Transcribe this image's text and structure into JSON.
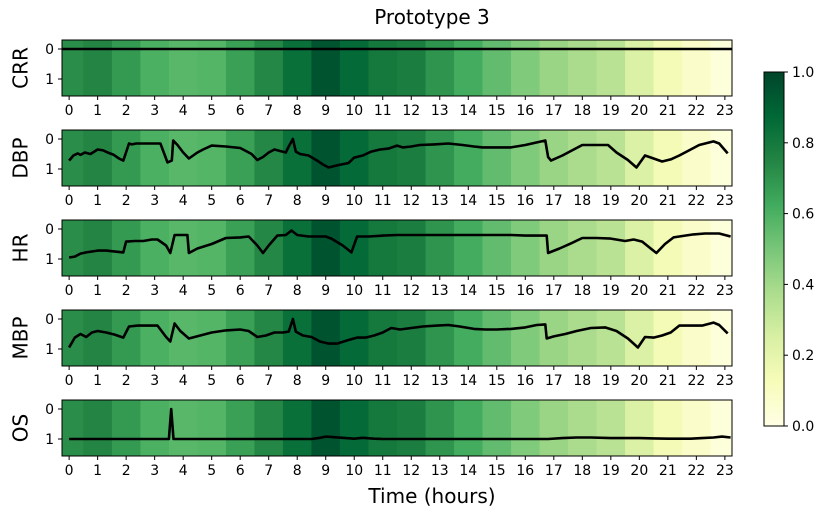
{
  "chart_data": {
    "type": "heatmap",
    "title": "Prototype 3",
    "xlabel": "Time (hours)",
    "x_ticks": [
      "0",
      "1",
      "2",
      "3",
      "4",
      "5",
      "6",
      "7",
      "8",
      "9",
      "10",
      "11",
      "12",
      "13",
      "14",
      "15",
      "16",
      "17",
      "18",
      "19",
      "20",
      "21",
      "22",
      "23"
    ],
    "y_ticks": [
      "0",
      "1"
    ],
    "xlim": [
      -0.25,
      23.25
    ],
    "heat_values": [
      0.72,
      0.75,
      0.68,
      0.6,
      0.57,
      0.58,
      0.66,
      0.74,
      0.84,
      0.95,
      0.86,
      0.8,
      0.78,
      0.7,
      0.62,
      0.55,
      0.48,
      0.42,
      0.38,
      0.34,
      0.24,
      0.14,
      0.08,
      0.03
    ],
    "colormap": {
      "name": "YlGn",
      "stops": [
        [
          0.0,
          "#ffffe5"
        ],
        [
          0.125,
          "#f7fcb9"
        ],
        [
          0.25,
          "#d9f0a3"
        ],
        [
          0.375,
          "#addd8e"
        ],
        [
          0.5,
          "#78c679"
        ],
        [
          0.625,
          "#41ab5d"
        ],
        [
          0.75,
          "#238443"
        ],
        [
          0.875,
          "#006837"
        ],
        [
          1.0,
          "#004529"
        ]
      ]
    },
    "colorbar": {
      "ticks": [
        "0.0",
        "0.2",
        "0.4",
        "0.6",
        "0.8",
        "1.0"
      ],
      "range": [
        0,
        1
      ]
    },
    "line_color": "#000000",
    "panels": [
      {
        "label": "CRR",
        "line": [
          [
            -0.25,
            0
          ],
          [
            23.25,
            0
          ]
        ]
      },
      {
        "label": "DBP",
        "line": [
          [
            0,
            0.72
          ],
          [
            0.15,
            0.55
          ],
          [
            0.3,
            0.48
          ],
          [
            0.4,
            0.53
          ],
          [
            0.55,
            0.45
          ],
          [
            0.75,
            0.5
          ],
          [
            1.0,
            0.35
          ],
          [
            1.2,
            0.38
          ],
          [
            1.35,
            0.45
          ],
          [
            1.55,
            0.52
          ],
          [
            1.75,
            0.65
          ],
          [
            1.9,
            0.72
          ],
          [
            2.1,
            0.15
          ],
          [
            2.2,
            0.18
          ],
          [
            2.35,
            0.15
          ],
          [
            2.5,
            0.15
          ],
          [
            2.8,
            0.15
          ],
          [
            3.0,
            0.15
          ],
          [
            3.2,
            0.15
          ],
          [
            3.45,
            0.78
          ],
          [
            3.6,
            0.72
          ],
          [
            3.65,
            0.05
          ],
          [
            3.8,
            0.2
          ],
          [
            4.0,
            0.45
          ],
          [
            4.2,
            0.65
          ],
          [
            4.5,
            0.45
          ],
          [
            4.7,
            0.35
          ],
          [
            5.0,
            0.22
          ],
          [
            5.5,
            0.25
          ],
          [
            6.0,
            0.3
          ],
          [
            6.4,
            0.5
          ],
          [
            6.6,
            0.7
          ],
          [
            6.8,
            0.6
          ],
          [
            7.0,
            0.45
          ],
          [
            7.2,
            0.35
          ],
          [
            7.4,
            0.4
          ],
          [
            7.6,
            0.45
          ],
          [
            7.7,
            0.25
          ],
          [
            7.85,
            0.0
          ],
          [
            7.95,
            0.42
          ],
          [
            8.1,
            0.5
          ],
          [
            8.4,
            0.55
          ],
          [
            8.7,
            0.72
          ],
          [
            8.9,
            0.85
          ],
          [
            9.1,
            0.95
          ],
          [
            9.4,
            0.88
          ],
          [
            9.8,
            0.8
          ],
          [
            10.0,
            0.62
          ],
          [
            10.3,
            0.55
          ],
          [
            10.6,
            0.42
          ],
          [
            10.9,
            0.35
          ],
          [
            11.2,
            0.32
          ],
          [
            11.5,
            0.22
          ],
          [
            11.7,
            0.28
          ],
          [
            12.0,
            0.25
          ],
          [
            12.3,
            0.2
          ],
          [
            12.8,
            0.18
          ],
          [
            13.3,
            0.15
          ],
          [
            13.8,
            0.2
          ],
          [
            14.2,
            0.25
          ],
          [
            14.5,
            0.28
          ],
          [
            15.0,
            0.28
          ],
          [
            15.5,
            0.28
          ],
          [
            16.0,
            0.2
          ],
          [
            16.7,
            0.05
          ],
          [
            16.8,
            0.6
          ],
          [
            16.9,
            0.72
          ],
          [
            17.3,
            0.55
          ],
          [
            17.6,
            0.4
          ],
          [
            18.0,
            0.2
          ],
          [
            18.3,
            0.2
          ],
          [
            18.6,
            0.2
          ],
          [
            18.9,
            0.2
          ],
          [
            19.2,
            0.45
          ],
          [
            19.6,
            0.7
          ],
          [
            19.9,
            0.95
          ],
          [
            20.2,
            0.55
          ],
          [
            20.5,
            0.65
          ],
          [
            20.8,
            0.75
          ],
          [
            21.1,
            0.68
          ],
          [
            21.4,
            0.55
          ],
          [
            21.8,
            0.35
          ],
          [
            22.1,
            0.2
          ],
          [
            22.6,
            0.08
          ],
          [
            22.8,
            0.15
          ],
          [
            23.1,
            0.48
          ]
        ]
      },
      {
        "label": "HR",
        "line": [
          [
            0,
            0.95
          ],
          [
            0.2,
            0.92
          ],
          [
            0.4,
            0.82
          ],
          [
            0.6,
            0.78
          ],
          [
            1.0,
            0.72
          ],
          [
            1.3,
            0.72
          ],
          [
            1.7,
            0.76
          ],
          [
            1.9,
            0.78
          ],
          [
            2.0,
            0.42
          ],
          [
            2.3,
            0.4
          ],
          [
            2.6,
            0.4
          ],
          [
            2.9,
            0.35
          ],
          [
            3.1,
            0.35
          ],
          [
            3.4,
            0.55
          ],
          [
            3.55,
            0.8
          ],
          [
            3.7,
            0.2
          ],
          [
            3.9,
            0.2
          ],
          [
            4.15,
            0.2
          ],
          [
            4.2,
            0.8
          ],
          [
            4.5,
            0.65
          ],
          [
            5.0,
            0.5
          ],
          [
            5.5,
            0.3
          ],
          [
            6.0,
            0.28
          ],
          [
            6.3,
            0.25
          ],
          [
            6.6,
            0.55
          ],
          [
            6.8,
            0.8
          ],
          [
            7.0,
            0.55
          ],
          [
            7.3,
            0.22
          ],
          [
            7.6,
            0.2
          ],
          [
            7.8,
            0.05
          ],
          [
            8.0,
            0.2
          ],
          [
            8.4,
            0.25
          ],
          [
            9.0,
            0.25
          ],
          [
            9.2,
            0.32
          ],
          [
            9.6,
            0.55
          ],
          [
            9.9,
            0.78
          ],
          [
            10.1,
            0.25
          ],
          [
            10.5,
            0.25
          ],
          [
            11.0,
            0.22
          ],
          [
            11.5,
            0.2
          ],
          [
            12.0,
            0.2
          ],
          [
            13.0,
            0.2
          ],
          [
            14.0,
            0.2
          ],
          [
            15.0,
            0.2
          ],
          [
            15.5,
            0.2
          ],
          [
            16.0,
            0.22
          ],
          [
            16.75,
            0.22
          ],
          [
            16.8,
            0.8
          ],
          [
            17.2,
            0.65
          ],
          [
            17.6,
            0.48
          ],
          [
            18.0,
            0.3
          ],
          [
            18.5,
            0.3
          ],
          [
            19.0,
            0.32
          ],
          [
            19.5,
            0.4
          ],
          [
            19.8,
            0.35
          ],
          [
            20.1,
            0.42
          ],
          [
            20.4,
            0.65
          ],
          [
            20.6,
            0.8
          ],
          [
            20.9,
            0.5
          ],
          [
            21.2,
            0.28
          ],
          [
            21.6,
            0.22
          ],
          [
            21.9,
            0.18
          ],
          [
            22.3,
            0.15
          ],
          [
            22.8,
            0.15
          ],
          [
            23.2,
            0.25
          ]
        ]
      },
      {
        "label": "MBP",
        "line": [
          [
            0,
            0.95
          ],
          [
            0.2,
            0.62
          ],
          [
            0.4,
            0.5
          ],
          [
            0.6,
            0.6
          ],
          [
            0.8,
            0.45
          ],
          [
            1.0,
            0.4
          ],
          [
            1.3,
            0.45
          ],
          [
            1.6,
            0.52
          ],
          [
            1.9,
            0.62
          ],
          [
            2.1,
            0.25
          ],
          [
            2.4,
            0.22
          ],
          [
            2.8,
            0.22
          ],
          [
            3.1,
            0.22
          ],
          [
            3.4,
            0.6
          ],
          [
            3.55,
            0.75
          ],
          [
            3.7,
            0.15
          ],
          [
            3.9,
            0.4
          ],
          [
            4.2,
            0.65
          ],
          [
            4.6,
            0.55
          ],
          [
            5.0,
            0.45
          ],
          [
            5.5,
            0.38
          ],
          [
            6.0,
            0.35
          ],
          [
            6.3,
            0.4
          ],
          [
            6.6,
            0.6
          ],
          [
            6.9,
            0.55
          ],
          [
            7.2,
            0.45
          ],
          [
            7.5,
            0.45
          ],
          [
            7.7,
            0.42
          ],
          [
            7.85,
            0.0
          ],
          [
            7.95,
            0.42
          ],
          [
            8.2,
            0.55
          ],
          [
            8.5,
            0.6
          ],
          [
            8.8,
            0.75
          ],
          [
            9.1,
            0.82
          ],
          [
            9.4,
            0.82
          ],
          [
            9.8,
            0.7
          ],
          [
            10.1,
            0.62
          ],
          [
            10.4,
            0.62
          ],
          [
            10.7,
            0.55
          ],
          [
            11.0,
            0.45
          ],
          [
            11.3,
            0.3
          ],
          [
            11.6,
            0.35
          ],
          [
            12.0,
            0.3
          ],
          [
            12.4,
            0.25
          ],
          [
            12.9,
            0.22
          ],
          [
            13.3,
            0.2
          ],
          [
            13.7,
            0.25
          ],
          [
            14.2,
            0.33
          ],
          [
            14.6,
            0.35
          ],
          [
            15.0,
            0.35
          ],
          [
            15.5,
            0.33
          ],
          [
            16.0,
            0.28
          ],
          [
            16.4,
            0.2
          ],
          [
            16.7,
            0.18
          ],
          [
            16.75,
            0.65
          ],
          [
            17.0,
            0.58
          ],
          [
            17.4,
            0.5
          ],
          [
            17.8,
            0.4
          ],
          [
            18.3,
            0.3
          ],
          [
            18.8,
            0.28
          ],
          [
            19.2,
            0.4
          ],
          [
            19.6,
            0.65
          ],
          [
            19.95,
            0.95
          ],
          [
            20.2,
            0.6
          ],
          [
            20.5,
            0.62
          ],
          [
            20.8,
            0.55
          ],
          [
            21.1,
            0.45
          ],
          [
            21.4,
            0.22
          ],
          [
            21.8,
            0.22
          ],
          [
            22.2,
            0.22
          ],
          [
            22.6,
            0.12
          ],
          [
            22.8,
            0.2
          ],
          [
            23.1,
            0.48
          ]
        ]
      },
      {
        "label": "OS",
        "line": [
          [
            0,
            1.0
          ],
          [
            3.5,
            1.0
          ],
          [
            3.58,
            0.0
          ],
          [
            3.66,
            1.0
          ],
          [
            4.0,
            1.0
          ],
          [
            8.5,
            1.0
          ],
          [
            8.8,
            0.96
          ],
          [
            9.0,
            0.92
          ],
          [
            9.3,
            0.94
          ],
          [
            9.7,
            0.97
          ],
          [
            10.0,
            0.99
          ],
          [
            10.3,
            0.96
          ],
          [
            10.7,
            0.99
          ],
          [
            11.0,
            1.0
          ],
          [
            14.0,
            1.0
          ],
          [
            16.0,
            1.0
          ],
          [
            16.8,
            1.0
          ],
          [
            17.3,
            0.97
          ],
          [
            17.8,
            0.95
          ],
          [
            18.3,
            0.95
          ],
          [
            19.0,
            0.97
          ],
          [
            20.0,
            0.97
          ],
          [
            20.5,
            0.98
          ],
          [
            21.0,
            0.99
          ],
          [
            21.8,
            0.99
          ],
          [
            22.2,
            0.97
          ],
          [
            22.6,
            0.95
          ],
          [
            22.9,
            0.92
          ],
          [
            23.2,
            0.95
          ]
        ]
      }
    ]
  }
}
